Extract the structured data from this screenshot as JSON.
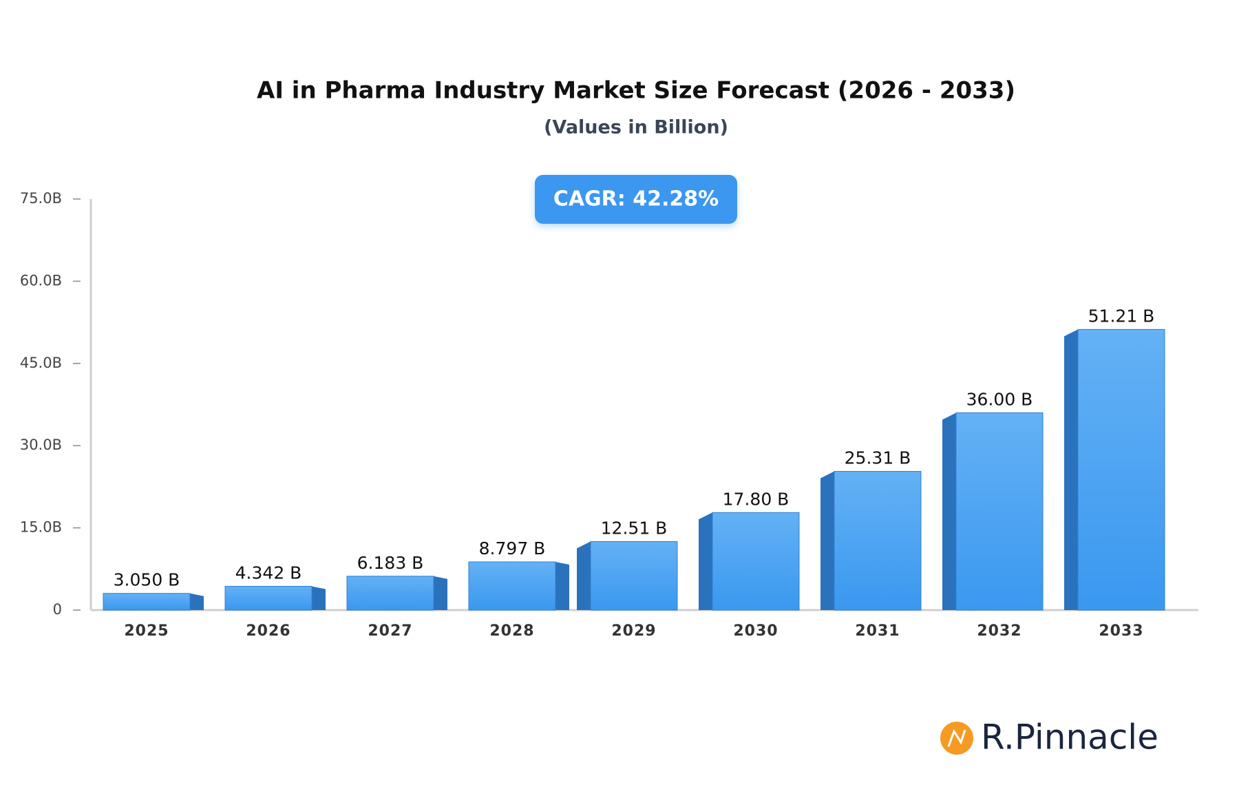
{
  "chart_data": {
    "type": "bar",
    "title": "AI in Pharma Industry Market Size Forecast (2026 - 2033)",
    "subtitle": "(Values in Billion)",
    "annotation": "CAGR: 42.28%",
    "categories": [
      "2025",
      "2026",
      "2027",
      "2028",
      "2029",
      "2030",
      "2031",
      "2032",
      "2033"
    ],
    "values": [
      3.05,
      4.342,
      6.183,
      8.797,
      12.51,
      17.8,
      25.31,
      36.0,
      51.21
    ],
    "value_labels": [
      "3.050 B",
      "4.342 B",
      "6.183 B",
      "8.797 B",
      "12.51 B",
      "17.80 B",
      "25.31 B",
      "36.00 B",
      "51.21 B"
    ],
    "color": "#3d9bf0",
    "ylim": [
      0,
      75
    ],
    "yticks": [
      0,
      {
        "value": 15,
        "label": "15.0B"
      },
      {
        "value": 30,
        "label": "30.0B"
      },
      {
        "value": 45,
        "label": "45.0B"
      },
      {
        "value": 60,
        "label": "60.0B"
      },
      {
        "value": 75,
        "label": "75.0B"
      }
    ],
    "grid": false
  },
  "logo": "R.Pinnacle"
}
